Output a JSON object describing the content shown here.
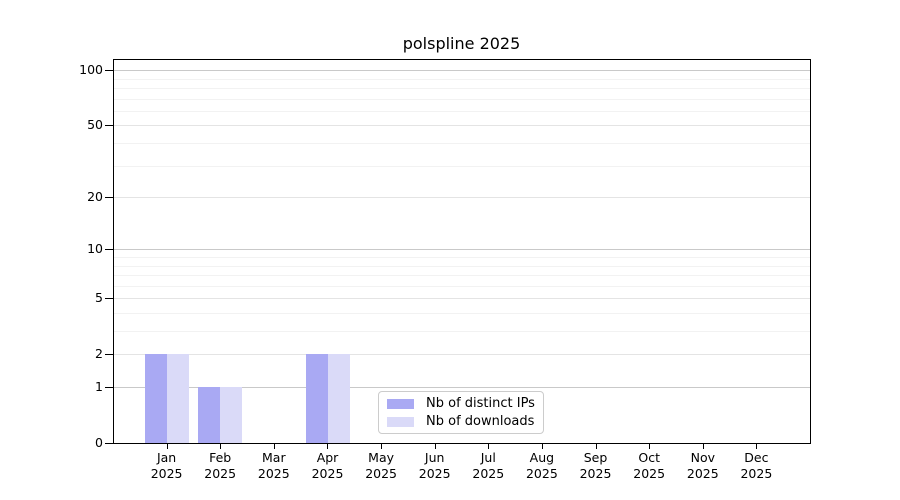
{
  "chart_data": {
    "type": "bar",
    "title": "polspline 2025",
    "categories": [
      "Jan",
      "Feb",
      "Mar",
      "Apr",
      "May",
      "Jun",
      "Jul",
      "Aug",
      "Sep",
      "Oct",
      "Nov",
      "Dec"
    ],
    "year": "2025",
    "series": [
      {
        "name": "Nb of distinct IPs",
        "color": "#a9a9f3",
        "values": [
          2,
          1,
          0,
          2,
          0,
          0,
          0,
          0,
          0,
          0,
          0,
          0
        ]
      },
      {
        "name": "Nb of downloads",
        "color": "#dadaf8",
        "values": [
          2,
          1,
          0,
          2,
          0,
          0,
          0,
          0,
          0,
          0,
          0,
          0
        ]
      }
    ],
    "y_ticks": [
      0,
      1,
      2,
      5,
      10,
      20,
      50,
      100
    ],
    "ylim": [
      0,
      115
    ],
    "scale": "log1p",
    "grid": {
      "major": [
        1,
        10,
        100
      ],
      "mid": [
        2,
        5,
        20,
        50
      ],
      "minor": [
        3,
        4,
        6,
        7,
        8,
        9,
        30,
        40,
        60,
        70,
        80,
        90
      ]
    },
    "grid_colors": {
      "major": "#c9c9c9",
      "mid": "#e4e4e4",
      "minor": "#f2f2f2"
    },
    "axis_color": "#000000",
    "legend_position": "bottom-center"
  }
}
